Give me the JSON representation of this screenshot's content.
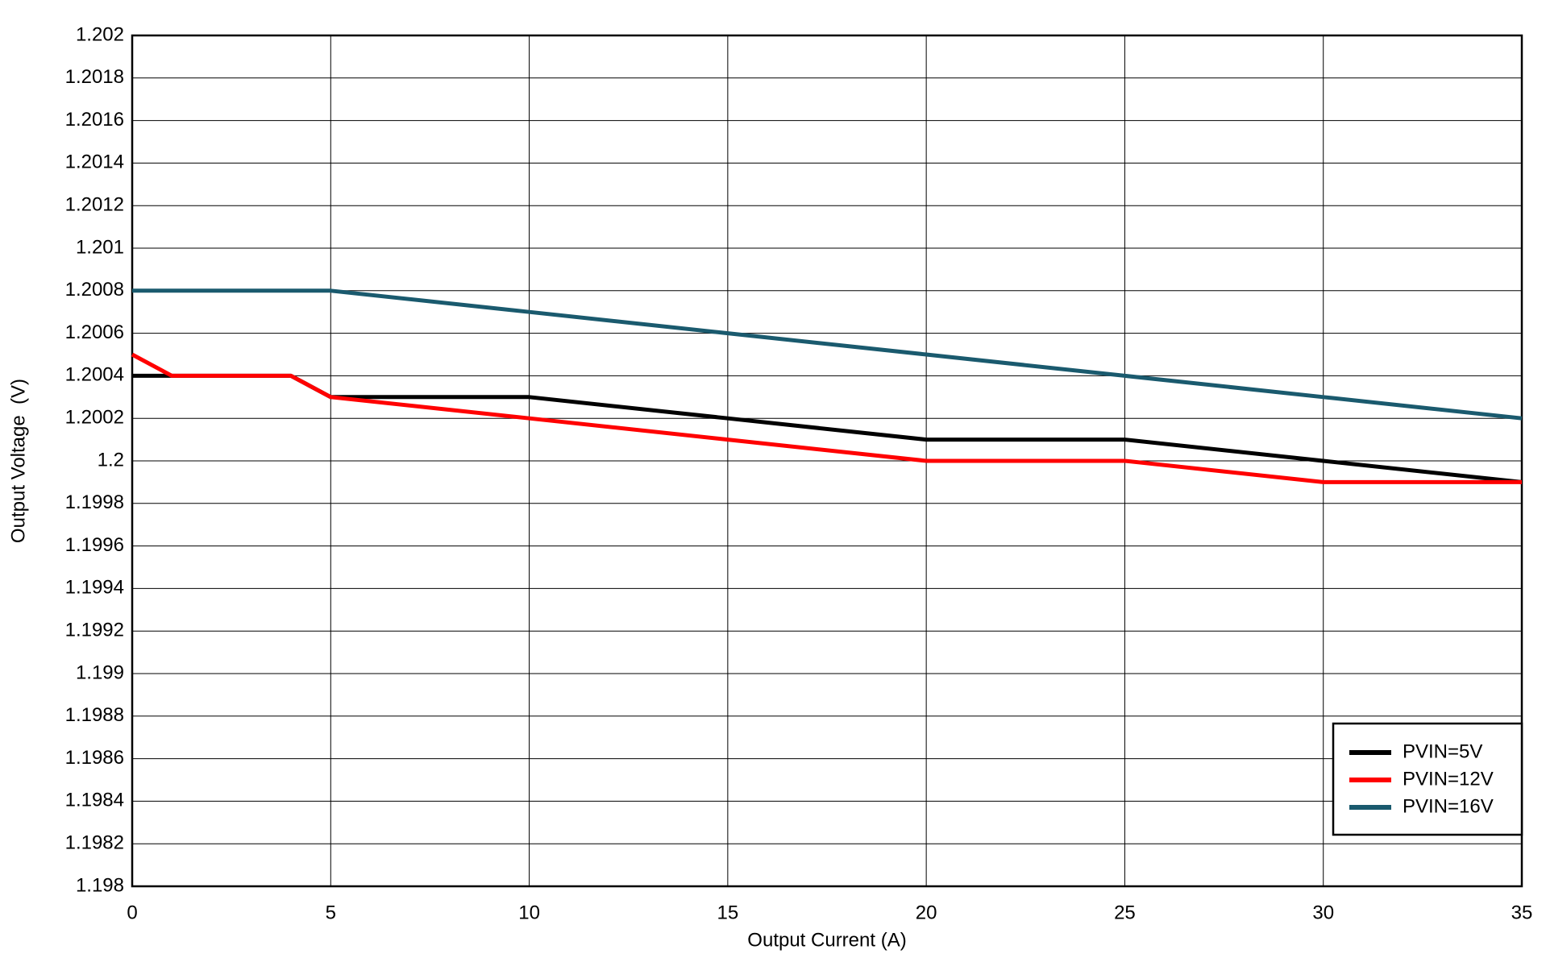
{
  "chart_data": {
    "type": "line",
    "xlabel": "Output Current (A)",
    "ylabel": "Output Voltage  (V)",
    "x": [
      0,
      1,
      4,
      5,
      10,
      15,
      20,
      25,
      30,
      35
    ],
    "series": [
      {
        "name": "PVIN=5V",
        "color": "#000000",
        "values": [
          1.2004,
          1.2004,
          1.2004,
          1.2003,
          1.2003,
          1.2002,
          1.2001,
          1.2001,
          1.2,
          1.1999
        ]
      },
      {
        "name": "PVIN=12V",
        "color": "#ff0000",
        "values": [
          1.2005,
          1.2004,
          1.2004,
          1.2003,
          1.2002,
          1.2001,
          1.2,
          1.2,
          1.1999,
          1.1999
        ]
      },
      {
        "name": "PVIN=16V",
        "color": "#1a5a6e",
        "values": [
          1.2008,
          1.2008,
          1.2008,
          1.2008,
          1.2007,
          1.2006,
          1.2005,
          1.2004,
          1.2003,
          1.2002
        ]
      }
    ],
    "xlim": [
      0,
      35
    ],
    "xticks": [
      0,
      5,
      10,
      15,
      20,
      25,
      30,
      35
    ],
    "ylim": [
      1.198,
      1.202
    ],
    "yticks": [
      1.198,
      1.1982,
      1.1984,
      1.1986,
      1.1988,
      1.199,
      1.1992,
      1.1994,
      1.1996,
      1.1998,
      1.2,
      1.2002,
      1.2004,
      1.2006,
      1.2008,
      1.201,
      1.2012,
      1.2014,
      1.2016,
      1.2018,
      1.202
    ],
    "grid": true,
    "legend": "lower right"
  }
}
